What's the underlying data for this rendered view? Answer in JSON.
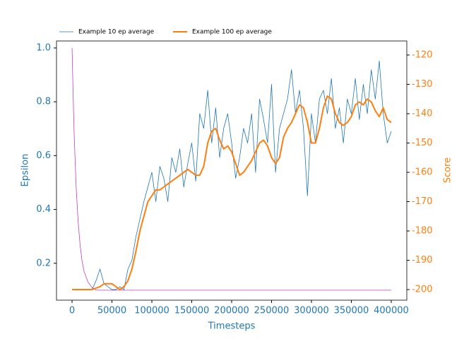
{
  "chart_data": {
    "type": "line",
    "xlabel": "Timesteps",
    "ylabel": "Epsilon",
    "y2label": "Score",
    "axis_colors": {
      "x": "#1f77b4",
      "y": "#1f77b4",
      "y2": "#ff7f0e"
    },
    "legend": "top-left",
    "xlim": [
      -19500,
      419500
    ],
    "xticks": [
      0,
      50000,
      100000,
      150000,
      200000,
      250000,
      300000,
      350000,
      400000
    ],
    "ylim": [
      0.063,
      1.026
    ],
    "yticks": [
      0.2,
      0.4,
      0.6,
      0.8,
      {
        "value": 1,
        "label": "1.0"
      }
    ],
    "y2lim": [
      -203.6,
      -115.2
    ],
    "y2ticks": [
      -200,
      -190,
      -180,
      -170,
      -160,
      -150,
      -140,
      -130,
      -120
    ],
    "series": [
      {
        "color": "#bf40bf",
        "width": 0.8,
        "axis": "y",
        "x": [
          0,
          2500,
          5000,
          7500,
          10000,
          12500,
          15000,
          17500,
          20000,
          25000,
          30000,
          400000
        ],
        "values": [
          1.0,
          0.69,
          0.49,
          0.36,
          0.27,
          0.21,
          0.17,
          0.15,
          0.13,
          0.11,
          0.1,
          0.1
        ]
      },
      {
        "name": "Example 10 ep average",
        "color": "#1f77b4",
        "width": 0.8,
        "axis": "y2",
        "x": [
          0,
          5000,
          10000,
          15000,
          20000,
          25000,
          30000,
          35000,
          40000,
          45000,
          50000,
          55000,
          60000,
          65000,
          70000,
          75000,
          80000,
          85000,
          90000,
          95000,
          100000,
          105000,
          110000,
          115000,
          120000,
          125000,
          130000,
          135000,
          140000,
          145000,
          150000,
          155000,
          160000,
          165000,
          170000,
          175000,
          180000,
          185000,
          190000,
          195000,
          200000,
          205000,
          210000,
          215000,
          220000,
          225000,
          230000,
          235000,
          240000,
          245000,
          250000,
          255000,
          260000,
          265000,
          270000,
          275000,
          280000,
          285000,
          290000,
          295000,
          300000,
          305000,
          310000,
          315000,
          320000,
          325000,
          330000,
          335000,
          340000,
          345000,
          350000,
          355000,
          360000,
          365000,
          370000,
          375000,
          380000,
          385000,
          390000,
          395000,
          400000
        ],
        "values": [
          -200,
          -200,
          -200,
          -200,
          -200,
          -200,
          -197,
          -193,
          -198,
          -199,
          -200,
          -200,
          -199,
          -200,
          -193,
          -190,
          -182,
          -176,
          -170,
          -165,
          -160,
          -170,
          -158,
          -162,
          -170,
          -155,
          -160,
          -152,
          -165,
          -157,
          -150,
          -163,
          -140,
          -145,
          -132,
          -150,
          -138,
          -155,
          -145,
          -140,
          -150,
          -162,
          -155,
          -145,
          -150,
          -140,
          -160,
          -135,
          -142,
          -150,
          -130,
          -160,
          -145,
          -140,
          -135,
          -125,
          -140,
          -132,
          -145,
          -168,
          -140,
          -150,
          -135,
          -132,
          -140,
          -128,
          -145,
          -138,
          -150,
          -135,
          -140,
          -128,
          -142,
          -130,
          -140,
          -125,
          -135,
          -122,
          -140,
          -150,
          -146
        ]
      },
      {
        "name": "Example 100 ep average",
        "color": "#ff7f0e",
        "width": 2,
        "axis": "y2",
        "x": [
          0,
          5000,
          10000,
          15000,
          20000,
          25000,
          30000,
          35000,
          40000,
          45000,
          50000,
          55000,
          60000,
          65000,
          70000,
          75000,
          80000,
          85000,
          90000,
          95000,
          100000,
          105000,
          110000,
          115000,
          120000,
          125000,
          130000,
          135000,
          140000,
          145000,
          150000,
          155000,
          160000,
          165000,
          170000,
          175000,
          180000,
          185000,
          190000,
          195000,
          200000,
          205000,
          210000,
          215000,
          220000,
          225000,
          230000,
          235000,
          240000,
          245000,
          250000,
          255000,
          260000,
          265000,
          270000,
          275000,
          280000,
          285000,
          290000,
          295000,
          300000,
          305000,
          310000,
          315000,
          320000,
          325000,
          330000,
          335000,
          340000,
          345000,
          350000,
          355000,
          360000,
          365000,
          370000,
          375000,
          380000,
          385000,
          390000,
          395000,
          400000
        ],
        "values": [
          -200,
          -200,
          -200,
          -200,
          -200,
          -200,
          -199.5,
          -199,
          -198,
          -198,
          -198,
          -199,
          -200,
          -199,
          -197,
          -193,
          -187,
          -180,
          -175,
          -170,
          -168,
          -166,
          -166,
          -165,
          -164,
          -163,
          -162,
          -161,
          -160,
          -159,
          -160,
          -161,
          -161,
          -158,
          -150,
          -146,
          -145,
          -149,
          -152,
          -151,
          -153,
          -157,
          -161,
          -160,
          -158,
          -156,
          -153,
          -150,
          -149,
          -151,
          -155,
          -157,
          -155,
          -148,
          -145,
          -143,
          -140,
          -137,
          -138,
          -143,
          -150,
          -150,
          -145,
          -138,
          -134,
          -135,
          -140,
          -143,
          -144,
          -143,
          -141,
          -137,
          -136,
          -137,
          -135,
          -136,
          -139,
          -141,
          -138,
          -142,
          -143
        ]
      }
    ]
  }
}
